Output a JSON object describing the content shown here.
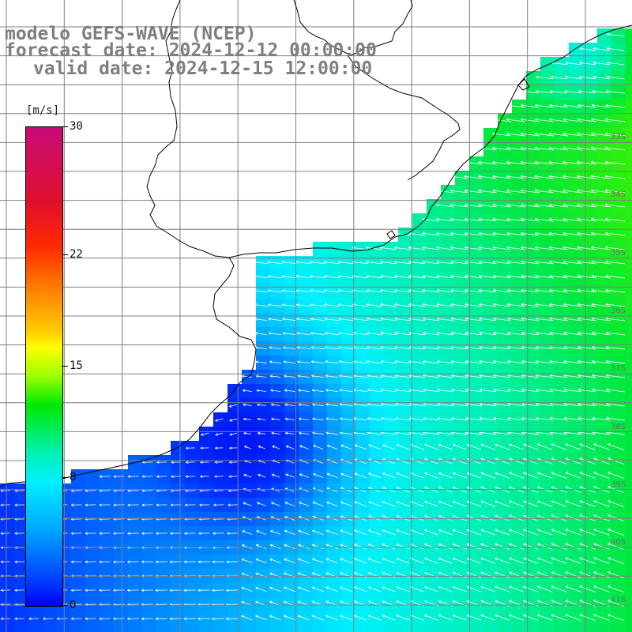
{
  "title": {
    "model": "modelo GEFS-WAVE (NCEP)",
    "forecast": "forecast date: 2024-12-12 00:00:00",
    "valid": "valid date: 2024-12-15 12:00:00"
  },
  "colorbar": {
    "unit": "[m/s]",
    "ticks": [
      {
        "value": 30,
        "label": "30"
      },
      {
        "value": 22,
        "label": "22"
      },
      {
        "value": 15,
        "label": "15"
      },
      {
        "value": 8,
        "label": "8"
      },
      {
        "value": 0,
        "label": "0"
      }
    ],
    "range": [
      0,
      30
    ]
  },
  "lat_labels": [
    "33S",
    "34S",
    "35S",
    "36S",
    "37S",
    "38S",
    "39S",
    "40S",
    "41S"
  ],
  "colors": {
    "land": "#ffffff",
    "grid": "#7f7f7f",
    "coast": "#000000",
    "arrows": "#ffffff",
    "title": "#7f7f7f"
  }
}
